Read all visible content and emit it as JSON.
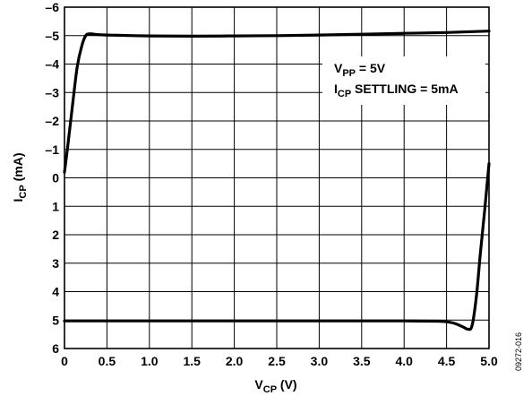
{
  "chart_data": {
    "type": "line",
    "xlabel": {
      "main": "V",
      "sub": "CP",
      "rest": " (V)"
    },
    "ylabel": {
      "main": "I",
      "sub": "CP",
      "rest": " (mA)"
    },
    "xlim": [
      0,
      5.0
    ],
    "ylim": [
      -6,
      6
    ],
    "y_axis_inverted": true,
    "grid": true,
    "x_ticks": [
      "0",
      "0.5",
      "1.0",
      "1.5",
      "2.0",
      "2.5",
      "3.0",
      "3.5",
      "4.0",
      "4.5",
      "5.0"
    ],
    "y_ticks": [
      "–6",
      "–5",
      "–4",
      "–3",
      "–2",
      "–1",
      "0",
      "1",
      "2",
      "3",
      "4",
      "5",
      "6"
    ],
    "annotations": [
      {
        "main": "V",
        "sub": "PP",
        "rest": " = 5V"
      },
      {
        "main": "I",
        "sub": "CP",
        "rest": " SETTLING = 5mA"
      }
    ],
    "series": [
      {
        "x": [
          0.0,
          0.05,
          0.1,
          0.15,
          0.2,
          0.25,
          0.3,
          0.35,
          0.5,
          1.0,
          1.5,
          2.0,
          2.5,
          3.0,
          3.5,
          4.0,
          4.5,
          5.0
        ],
        "y": [
          -0.2,
          -1.4,
          -2.7,
          -3.9,
          -4.6,
          -5.0,
          -5.06,
          -5.05,
          -5.02,
          -4.99,
          -4.98,
          -4.99,
          -5.0,
          -5.02,
          -5.05,
          -5.08,
          -5.11,
          -5.16
        ]
      },
      {
        "x": [
          0.0,
          0.5,
          1.0,
          1.5,
          2.0,
          2.5,
          3.0,
          3.5,
          4.0,
          4.4,
          4.5,
          4.6,
          4.7,
          4.75,
          4.8,
          4.85,
          4.9,
          4.95,
          5.0
        ],
        "y": [
          5.03,
          5.03,
          5.03,
          5.03,
          5.03,
          5.03,
          5.03,
          5.03,
          5.03,
          5.04,
          5.06,
          5.12,
          5.25,
          5.32,
          5.2,
          4.2,
          2.6,
          1.1,
          -0.5
        ]
      }
    ]
  },
  "figure_id": "09272-016"
}
